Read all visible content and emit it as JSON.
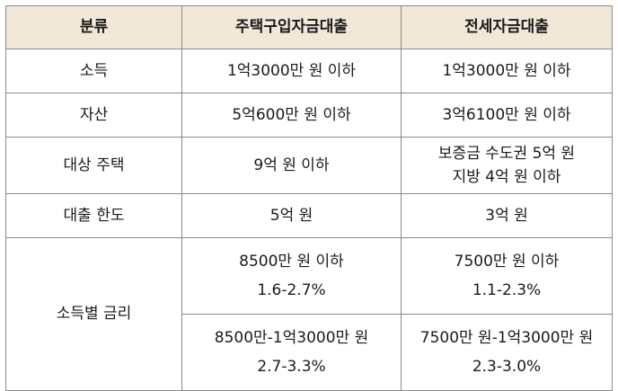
{
  "table": {
    "headers": [
      "분류",
      "주택구입자금대출",
      "전세자금대출"
    ],
    "rows": [
      {
        "label": "소득",
        "home": "1억3000만 원 이하",
        "jeonse": "1억3000만 원 이하"
      },
      {
        "label": "자산",
        "home": "5억600만 원 이하",
        "jeonse": "3억6100만 원 이하"
      },
      {
        "label": "대상 주택",
        "home": "9억 원 이하",
        "jeonse_lines": [
          "보증금 수도권 5억 원",
          "지방 4억 원 이하"
        ]
      },
      {
        "label": "대출 한도",
        "home": "5억 원",
        "jeonse": "3억 원"
      }
    ],
    "rate": {
      "label": "소득별 금리",
      "tiers": [
        {
          "home_income": "8500만 원 이하",
          "home_rate": "1.6-2.7%",
          "jeonse_income": "7500만 원 이하",
          "jeonse_rate": "1.1-2.3%"
        },
        {
          "home_income": "8500만-1억3000만 원",
          "home_rate": "2.7-3.3%",
          "jeonse_income": "7500만 원-1억3000만 원",
          "jeonse_rate": "2.3-3.0%"
        }
      ]
    }
  }
}
